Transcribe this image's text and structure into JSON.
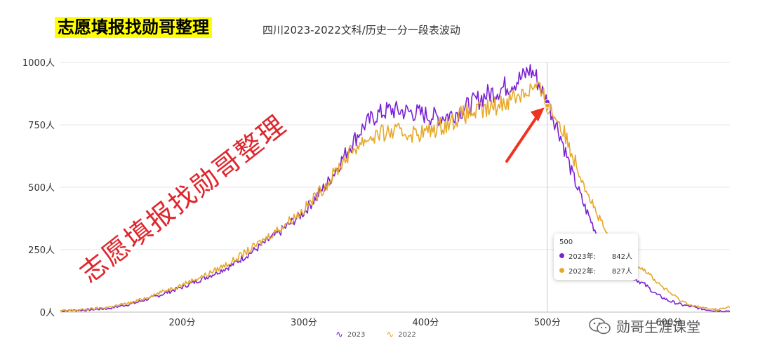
{
  "brand_label": "志愿填报找勋哥整理",
  "watermark_text": "志愿填报找勋哥整理",
  "wechat_account": "勋哥生涯课堂",
  "tooltip": {
    "title": "500",
    "rows": [
      {
        "label": "2023年:",
        "value": "842人",
        "color": "#7b22d4"
      },
      {
        "label": "2022年:",
        "value": "827人",
        "color": "#e6a82a"
      }
    ]
  },
  "colors": {
    "series_2023": "#7b22d4",
    "series_2022": "#e6a82a",
    "arrow": "#ee3322",
    "watermark": "#e0262d"
  },
  "chart_data": {
    "type": "line",
    "title": "四川2023-2022文科/历史一分一段表波动",
    "xlabel": "",
    "ylabel": "",
    "xlim": [
      100,
      650
    ],
    "ylim": [
      0,
      1000
    ],
    "x_ticks": [
      200,
      300,
      400,
      500,
      600
    ],
    "x_tick_labels": [
      "200分",
      "300分",
      "400分",
      "500分",
      "600分"
    ],
    "y_ticks": [
      0,
      250,
      500,
      750,
      1000
    ],
    "y_tick_labels": [
      "0人",
      "250人",
      "500人",
      "750人",
      "1000人"
    ],
    "grid": true,
    "legend_position": "bottom",
    "highlight_x": 500,
    "series": [
      {
        "name": "2023",
        "color": "#7b22d4",
        "x": [
          100,
          120,
          140,
          160,
          180,
          200,
          220,
          240,
          260,
          280,
          300,
          320,
          330,
          340,
          350,
          360,
          370,
          380,
          390,
          400,
          410,
          420,
          430,
          440,
          450,
          460,
          470,
          480,
          485,
          490,
          495,
          500,
          510,
          520,
          530,
          540,
          550,
          560,
          570,
          580,
          590,
          600,
          610,
          620,
          630,
          640,
          650
        ],
        "values": [
          5,
          8,
          15,
          35,
          65,
          100,
          140,
          185,
          250,
          320,
          400,
          520,
          600,
          680,
          750,
          790,
          810,
          805,
          800,
          790,
          780,
          790,
          810,
          840,
          870,
          890,
          915,
          940,
          970,
          950,
          890,
          842,
          720,
          560,
          430,
          320,
          230,
          180,
          140,
          110,
          70,
          45,
          30,
          20,
          10,
          5,
          5
        ]
      },
      {
        "name": "2022",
        "color": "#e6a82a",
        "x": [
          100,
          120,
          140,
          160,
          180,
          200,
          220,
          240,
          260,
          280,
          300,
          320,
          330,
          340,
          350,
          360,
          370,
          380,
          390,
          400,
          410,
          420,
          430,
          440,
          450,
          460,
          470,
          480,
          485,
          490,
          495,
          500,
          510,
          520,
          530,
          540,
          550,
          560,
          570,
          580,
          590,
          600,
          610,
          620,
          630,
          640,
          650
        ],
        "values": [
          5,
          10,
          20,
          40,
          75,
          110,
          150,
          200,
          265,
          335,
          410,
          520,
          590,
          650,
          690,
          710,
          720,
          720,
          715,
          720,
          740,
          760,
          790,
          800,
          810,
          830,
          860,
          880,
          890,
          900,
          880,
          827,
          760,
          640,
          520,
          400,
          300,
          240,
          200,
          170,
          120,
          80,
          45,
          25,
          15,
          10,
          20
        ]
      }
    ]
  }
}
